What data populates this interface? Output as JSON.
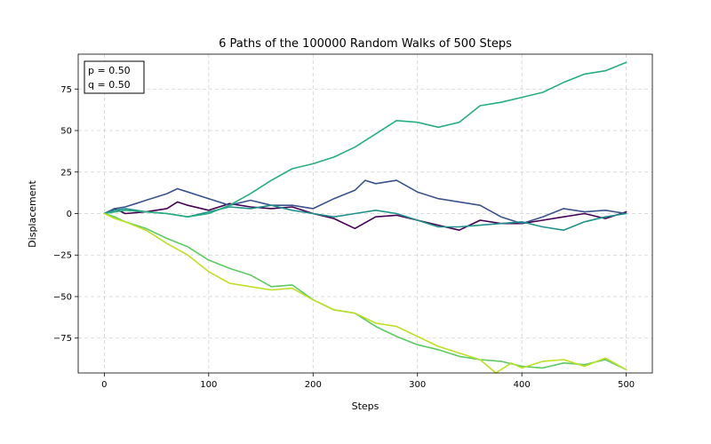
{
  "chart_data": {
    "type": "line",
    "title": "6 Paths of the 100000 Random Walks of 500 Steps",
    "xlabel": "Steps",
    "ylabel": "Displacement",
    "xlim": [
      -25,
      525
    ],
    "ylim": [
      -96,
      96
    ],
    "xticks": [
      0,
      100,
      200,
      300,
      400,
      500
    ],
    "yticks": [
      -75,
      -50,
      -25,
      0,
      25,
      50,
      75
    ],
    "xtick_labels": [
      "0",
      "100",
      "200",
      "300",
      "400",
      "500"
    ],
    "ytick_labels": [
      "−75",
      "−50",
      "−25",
      "0",
      "25",
      "50",
      "75"
    ],
    "grid": true,
    "legend": false,
    "annotation": {
      "lines": [
        "p = 0.50",
        "q = 0.50"
      ],
      "position": "top-left"
    },
    "series": [
      {
        "color": "#440154",
        "x": [
          0,
          10,
          20,
          40,
          60,
          70,
          80,
          100,
          120,
          140,
          160,
          180,
          200,
          220,
          240,
          260,
          280,
          300,
          320,
          340,
          360,
          380,
          400,
          420,
          440,
          460,
          480,
          500
        ],
        "y": [
          0,
          3,
          0,
          1,
          3,
          7,
          5,
          2,
          6,
          4,
          3,
          4,
          0,
          -3,
          -9,
          -2,
          -1,
          -4,
          -7,
          -10,
          -4,
          -6,
          -6,
          -4,
          -2,
          0,
          -3,
          1
        ]
      },
      {
        "color": "#3b528b",
        "x": [
          0,
          10,
          20,
          30,
          40,
          60,
          70,
          80,
          100,
          120,
          140,
          160,
          180,
          200,
          220,
          240,
          250,
          260,
          280,
          300,
          320,
          340,
          360,
          380,
          400,
          420,
          440,
          460,
          480,
          500
        ],
        "y": [
          0,
          3,
          4,
          6,
          8,
          12,
          15,
          13,
          9,
          5,
          8,
          5,
          5,
          3,
          9,
          14,
          20,
          18,
          20,
          13,
          9,
          7,
          5,
          -2,
          -6,
          -2,
          3,
          1,
          2,
          0
        ]
      },
      {
        "color": "#21918c",
        "x": [
          0,
          10,
          20,
          40,
          60,
          80,
          100,
          120,
          140,
          160,
          180,
          200,
          220,
          240,
          260,
          280,
          300,
          320,
          340,
          360,
          380,
          400,
          420,
          440,
          460,
          480,
          500
        ],
        "y": [
          0,
          2,
          3,
          1,
          0,
          -2,
          1,
          4,
          3,
          5,
          2,
          0,
          -2,
          0,
          2,
          0,
          -4,
          -8,
          -8,
          -7,
          -6,
          -5,
          -8,
          -10,
          -5,
          -2,
          0
        ]
      },
      {
        "color": "#27ad81",
        "x": [
          0,
          20,
          40,
          60,
          80,
          100,
          120,
          140,
          160,
          180,
          200,
          220,
          240,
          260,
          280,
          300,
          320,
          340,
          360,
          380,
          400,
          420,
          440,
          460,
          480,
          500
        ],
        "y": [
          0,
          2,
          1,
          0,
          -2,
          0,
          5,
          12,
          20,
          27,
          30,
          34,
          40,
          48,
          56,
          55,
          52,
          55,
          65,
          67,
          70,
          73,
          79,
          84,
          86,
          91
        ]
      },
      {
        "color": "#5ec962",
        "x": [
          0,
          10,
          20,
          40,
          60,
          80,
          100,
          120,
          140,
          160,
          180,
          200,
          220,
          240,
          260,
          280,
          300,
          320,
          340,
          360,
          380,
          400,
          420,
          440,
          460,
          480,
          500
        ],
        "y": [
          0,
          -2,
          -5,
          -9,
          -15,
          -20,
          -28,
          -33,
          -37,
          -44,
          -43,
          -52,
          -58,
          -60,
          -68,
          -74,
          -79,
          -82,
          -86,
          -88,
          -89,
          -92,
          -93,
          -90,
          -91,
          -88,
          -94
        ]
      },
      {
        "color": "#bddf26",
        "x": [
          0,
          10,
          20,
          40,
          60,
          80,
          100,
          120,
          140,
          160,
          180,
          200,
          220,
          240,
          260,
          280,
          300,
          320,
          340,
          360,
          375,
          390,
          400,
          420,
          440,
          460,
          480,
          500
        ],
        "y": [
          0,
          -3,
          -5,
          -10,
          -18,
          -25,
          -35,
          -42,
          -44,
          -46,
          -45,
          -52,
          -58,
          -60,
          -66,
          -68,
          -74,
          -80,
          -84,
          -88,
          -96,
          -90,
          -93,
          -89,
          -88,
          -92,
          -87,
          -94
        ]
      }
    ]
  }
}
